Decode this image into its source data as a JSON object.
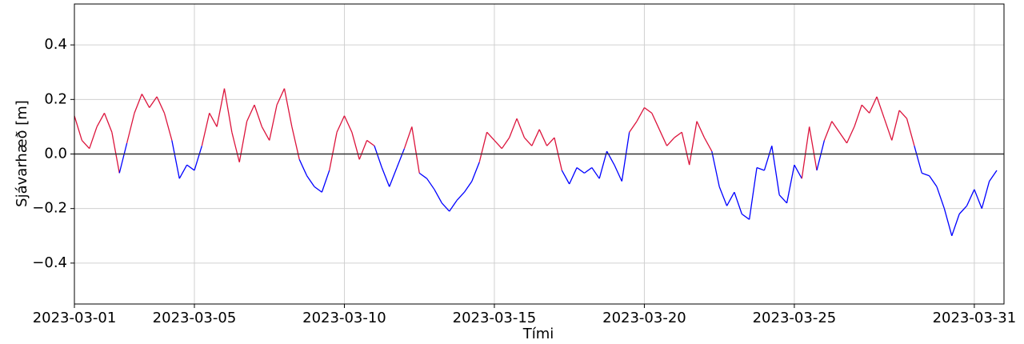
{
  "chart_data": {
    "type": "line",
    "x_label": "Tími",
    "y_label": "Sjávarhæð [m]",
    "x": [
      "2023-03-01 00:00",
      "2023-03-01 06:00",
      "2023-03-01 12:00",
      "2023-03-01 18:00",
      "2023-03-02 00:00",
      "2023-03-02 06:00",
      "2023-03-02 12:00",
      "2023-03-02 18:00",
      "2023-03-03 00:00",
      "2023-03-03 06:00",
      "2023-03-03 12:00",
      "2023-03-03 18:00",
      "2023-03-04 00:00",
      "2023-03-04 06:00",
      "2023-03-04 12:00",
      "2023-03-04 18:00",
      "2023-03-05 00:00",
      "2023-03-05 06:00",
      "2023-03-05 12:00",
      "2023-03-05 18:00",
      "2023-03-06 00:00",
      "2023-03-06 06:00",
      "2023-03-06 12:00",
      "2023-03-06 18:00",
      "2023-03-07 00:00",
      "2023-03-07 06:00",
      "2023-03-07 12:00",
      "2023-03-07 18:00",
      "2023-03-08 00:00",
      "2023-03-08 06:00",
      "2023-03-08 12:00",
      "2023-03-08 18:00",
      "2023-03-09 00:00",
      "2023-03-09 06:00",
      "2023-03-09 12:00",
      "2023-03-09 18:00",
      "2023-03-10 00:00",
      "2023-03-10 06:00",
      "2023-03-10 12:00",
      "2023-03-10 18:00",
      "2023-03-11 00:00",
      "2023-03-11 06:00",
      "2023-03-11 12:00",
      "2023-03-11 18:00",
      "2023-03-12 00:00",
      "2023-03-12 06:00",
      "2023-03-12 12:00",
      "2023-03-12 18:00",
      "2023-03-13 00:00",
      "2023-03-13 06:00",
      "2023-03-13 12:00",
      "2023-03-13 18:00",
      "2023-03-14 00:00",
      "2023-03-14 06:00",
      "2023-03-14 12:00",
      "2023-03-14 18:00",
      "2023-03-15 00:00",
      "2023-03-15 06:00",
      "2023-03-15 12:00",
      "2023-03-15 18:00",
      "2023-03-16 00:00",
      "2023-03-16 06:00",
      "2023-03-16 12:00",
      "2023-03-16 18:00",
      "2023-03-17 00:00",
      "2023-03-17 06:00",
      "2023-03-17 12:00",
      "2023-03-17 18:00",
      "2023-03-18 00:00",
      "2023-03-18 06:00",
      "2023-03-18 12:00",
      "2023-03-18 18:00",
      "2023-03-19 00:00",
      "2023-03-19 06:00",
      "2023-03-19 12:00",
      "2023-03-19 18:00",
      "2023-03-20 00:00",
      "2023-03-20 06:00",
      "2023-03-20 12:00",
      "2023-03-20 18:00",
      "2023-03-21 00:00",
      "2023-03-21 06:00",
      "2023-03-21 12:00",
      "2023-03-21 18:00",
      "2023-03-22 00:00",
      "2023-03-22 06:00",
      "2023-03-22 12:00",
      "2023-03-22 18:00",
      "2023-03-23 00:00",
      "2023-03-23 06:00",
      "2023-03-23 12:00",
      "2023-03-23 18:00",
      "2023-03-24 00:00",
      "2023-03-24 06:00",
      "2023-03-24 12:00",
      "2023-03-24 18:00",
      "2023-03-25 00:00",
      "2023-03-25 06:00",
      "2023-03-25 12:00",
      "2023-03-25 18:00",
      "2023-03-26 00:00",
      "2023-03-26 06:00",
      "2023-03-26 12:00",
      "2023-03-26 18:00",
      "2023-03-27 00:00",
      "2023-03-27 06:00",
      "2023-03-27 12:00",
      "2023-03-27 18:00",
      "2023-03-28 00:00",
      "2023-03-28 06:00",
      "2023-03-28 12:00",
      "2023-03-28 18:00",
      "2023-03-29 00:00",
      "2023-03-29 06:00",
      "2023-03-29 12:00",
      "2023-03-29 18:00",
      "2023-03-30 00:00",
      "2023-03-30 06:00",
      "2023-03-30 12:00",
      "2023-03-30 18:00",
      "2023-03-31 00:00",
      "2023-03-31 06:00",
      "2023-03-31 12:00",
      "2023-03-31 18:00"
    ],
    "values": [
      0.14,
      0.05,
      0.02,
      0.1,
      0.15,
      0.08,
      -0.07,
      0.04,
      0.15,
      0.22,
      0.17,
      0.21,
      0.15,
      0.05,
      -0.09,
      -0.04,
      -0.06,
      0.03,
      0.15,
      0.1,
      0.24,
      0.08,
      -0.03,
      0.12,
      0.18,
      0.1,
      0.05,
      0.18,
      0.24,
      0.1,
      -0.02,
      -0.08,
      -0.12,
      -0.14,
      -0.06,
      0.08,
      0.14,
      0.08,
      -0.02,
      0.05,
      0.03,
      -0.05,
      -0.12,
      -0.05,
      0.02,
      0.1,
      -0.07,
      -0.09,
      -0.13,
      -0.18,
      -0.21,
      -0.17,
      -0.14,
      -0.1,
      -0.03,
      0.08,
      0.05,
      0.02,
      0.06,
      0.13,
      0.06,
      0.03,
      0.09,
      0.03,
      0.06,
      -0.06,
      -0.11,
      -0.05,
      -0.07,
      -0.05,
      -0.09,
      0.01,
      -0.04,
      -0.1,
      0.08,
      0.12,
      0.17,
      0.15,
      0.09,
      0.03,
      0.06,
      0.08,
      -0.04,
      0.12,
      0.06,
      0.01,
      -0.12,
      -0.19,
      -0.14,
      -0.22,
      -0.24,
      -0.05,
      -0.06,
      0.03,
      -0.15,
      -0.18,
      -0.04,
      -0.09,
      0.1,
      -0.06,
      0.05,
      0.12,
      0.08,
      0.04,
      0.1,
      0.18,
      0.15,
      0.21,
      0.13,
      0.05,
      0.16,
      0.13,
      0.03,
      -0.07,
      -0.08,
      -0.12,
      -0.2,
      -0.3,
      -0.22,
      -0.19,
      -0.13,
      -0.2,
      -0.1,
      -0.06
    ],
    "color_positive": "#dc143c",
    "color_negative": "#0000ff",
    "reference_line": 0,
    "xlim": [
      "2023-03-01 00:00",
      "2023-03-31 23:45"
    ],
    "xticks": [
      "2023-03-01",
      "2023-03-05",
      "2023-03-10",
      "2023-03-15",
      "2023-03-20",
      "2023-03-25",
      "2023-03-31"
    ],
    "ylim": [
      -0.55,
      0.55
    ],
    "yticks": [
      {
        "value": -0.4,
        "label": "−0.4"
      },
      {
        "value": -0.2,
        "label": "−0.2"
      },
      {
        "value": 0,
        "label": "0.0"
      },
      0.2,
      0.4
    ],
    "grid": true
  }
}
